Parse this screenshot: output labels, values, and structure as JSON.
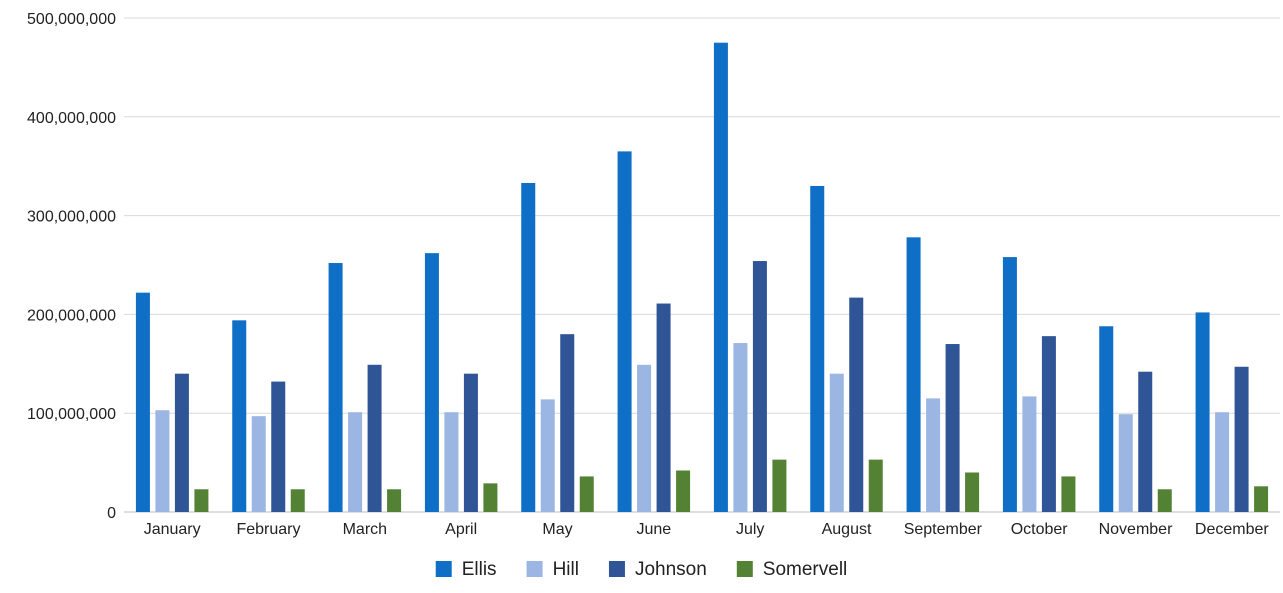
{
  "chart_data": {
    "type": "bar",
    "categories": [
      "January",
      "February",
      "March",
      "April",
      "May",
      "June",
      "July",
      "August",
      "September",
      "October",
      "November",
      "December"
    ],
    "series": [
      {
        "name": "Ellis",
        "color": "#0f6fc6",
        "values": [
          222000000,
          194000000,
          252000000,
          262000000,
          333000000,
          365000000,
          475000000,
          330000000,
          278000000,
          258000000,
          188000000,
          202000000
        ]
      },
      {
        "name": "Hill",
        "color": "#9bb6e3",
        "values": [
          103000000,
          97000000,
          101000000,
          101000000,
          114000000,
          149000000,
          171000000,
          140000000,
          115000000,
          117000000,
          99000000,
          101000000
        ]
      },
      {
        "name": "Johnson",
        "color": "#2f5597",
        "values": [
          140000000,
          132000000,
          149000000,
          140000000,
          180000000,
          211000000,
          254000000,
          217000000,
          170000000,
          178000000,
          142000000,
          147000000
        ]
      },
      {
        "name": "Somervell",
        "color": "#548235",
        "values": [
          23000000,
          23000000,
          23000000,
          29000000,
          36000000,
          42000000,
          53000000,
          53000000,
          40000000,
          36000000,
          23000000,
          26000000
        ]
      }
    ],
    "ylim": [
      0,
      500000000
    ],
    "yticks": [
      "0",
      "100,000,000",
      "200,000,000",
      "300,000,000",
      "400,000,000",
      "500,000,000"
    ],
    "grid": true,
    "legend_position": "bottom"
  }
}
